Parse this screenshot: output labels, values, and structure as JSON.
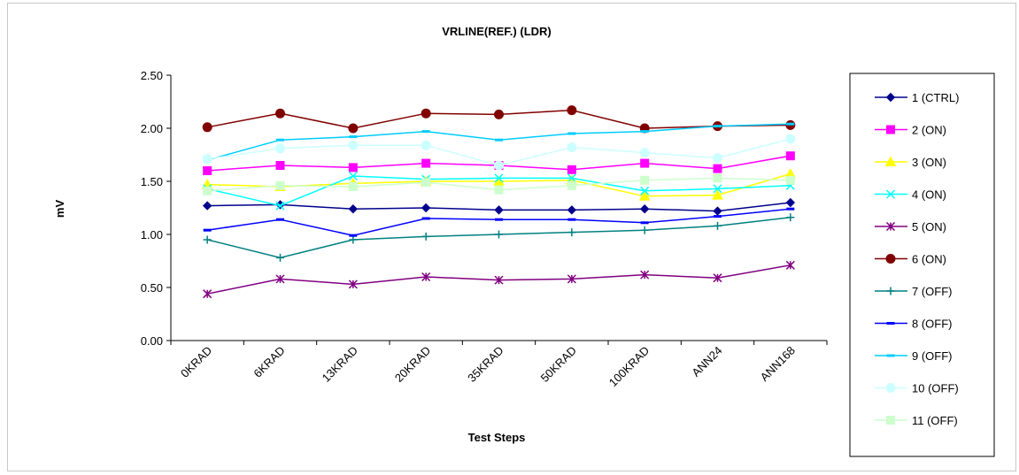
{
  "chart_data": {
    "type": "line",
    "title": "VRLINE(REF.) (LDR)",
    "xlabel": "Test Steps",
    "ylabel": "mV",
    "categories": [
      "0KRAD",
      "6KRAD",
      "13KRAD",
      "20KRAD",
      "35KRAD",
      "50KRAD",
      "100KRAD",
      "ANN24",
      "ANN168"
    ],
    "ylim": [
      0,
      2.5
    ],
    "yticks": [
      "0.00",
      "0.50",
      "1.00",
      "1.50",
      "2.00",
      "2.50"
    ],
    "legend_position": "right",
    "grid": false,
    "series": [
      {
        "name": "1 (CTRL)",
        "color": "#00008B",
        "marker": "diamond",
        "values": [
          1.27,
          1.28,
          1.24,
          1.25,
          1.23,
          1.23,
          1.24,
          1.22,
          1.3
        ]
      },
      {
        "name": "2 (ON)",
        "color": "#FF00FF",
        "marker": "square",
        "values": [
          1.6,
          1.65,
          1.63,
          1.67,
          1.65,
          1.61,
          1.67,
          1.62,
          1.74
        ]
      },
      {
        "name": "3 (ON)",
        "color": "#FFFF00",
        "marker": "triangle",
        "values": [
          1.47,
          1.45,
          1.48,
          1.5,
          1.5,
          1.51,
          1.36,
          1.37,
          1.57
        ]
      },
      {
        "name": "4 (ON)",
        "color": "#00FFFF",
        "marker": "x",
        "values": [
          1.43,
          1.27,
          1.55,
          1.52,
          1.53,
          1.53,
          1.41,
          1.43,
          1.46
        ]
      },
      {
        "name": "5 (ON)",
        "color": "#800080",
        "marker": "star",
        "values": [
          0.44,
          0.58,
          0.53,
          0.6,
          0.57,
          0.58,
          0.62,
          0.59,
          0.71
        ]
      },
      {
        "name": "6 (ON)",
        "color": "#800000",
        "marker": "circle",
        "values": [
          2.01,
          2.14,
          2.0,
          2.14,
          2.13,
          2.17,
          2.0,
          2.02,
          2.03
        ]
      },
      {
        "name": "7 (OFF)",
        "color": "#008080",
        "marker": "plus",
        "values": [
          0.95,
          0.78,
          0.95,
          0.98,
          1.0,
          1.02,
          1.04,
          1.08,
          1.16
        ]
      },
      {
        "name": "8 (OFF)",
        "color": "#0000FF",
        "marker": "dash",
        "values": [
          1.04,
          1.14,
          0.99,
          1.15,
          1.14,
          1.14,
          1.11,
          1.17,
          1.24
        ]
      },
      {
        "name": "9 (OFF)",
        "color": "#00CCFF",
        "marker": "dash",
        "values": [
          1.7,
          1.89,
          1.92,
          1.97,
          1.89,
          1.95,
          1.97,
          2.02,
          2.04
        ]
      },
      {
        "name": "10 (OFF)",
        "color": "#CCFFFF",
        "marker": "circle",
        "values": [
          1.71,
          1.81,
          1.84,
          1.84,
          1.65,
          1.82,
          1.77,
          1.72,
          1.9
        ]
      },
      {
        "name": "11 (OFF)",
        "color": "#CCFFCC",
        "marker": "square",
        "values": [
          1.41,
          1.46,
          1.45,
          1.49,
          1.42,
          1.46,
          1.51,
          1.53,
          1.51
        ]
      }
    ]
  }
}
